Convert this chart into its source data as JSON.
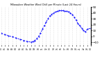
{
  "title": "Milwaukee Weather Wind Chill per Minute (Last 24 Hours)",
  "line_color": "blue",
  "background_color": "#ffffff",
  "grid_color": "#c8c8c8",
  "ylim": [
    -15,
    50
  ],
  "yticks": [
    -10,
    0,
    10,
    20,
    30,
    40,
    50
  ],
  "xlim": [
    0,
    1440
  ],
  "x_data": [
    0,
    60,
    120,
    180,
    240,
    300,
    360,
    420,
    480,
    510,
    540,
    570,
    600,
    630,
    660,
    690,
    720,
    750,
    780,
    810,
    840,
    870,
    900,
    930,
    960,
    990,
    1020,
    1050,
    1080,
    1110,
    1140,
    1170,
    1200,
    1230,
    1260,
    1290,
    1320,
    1350,
    1380,
    1440
  ],
  "y_data": [
    5,
    3,
    1,
    -1,
    -3,
    -5,
    -7,
    -9,
    -10,
    -9,
    -7,
    -4,
    0,
    5,
    12,
    18,
    24,
    30,
    35,
    38,
    40,
    42,
    43,
    44,
    44,
    44,
    43,
    43,
    42,
    40,
    37,
    33,
    28,
    22,
    18,
    14,
    10,
    8,
    12,
    14
  ]
}
